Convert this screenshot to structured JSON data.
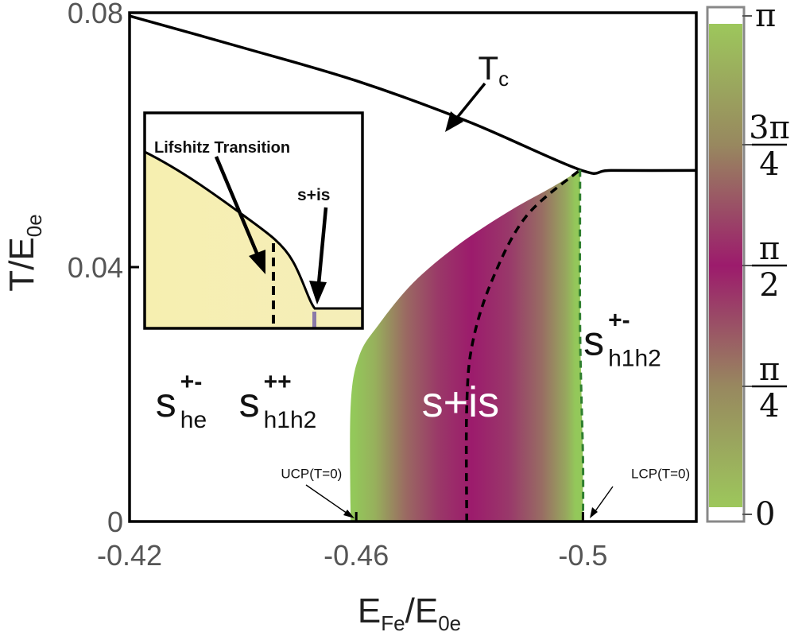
{
  "chart_data": {
    "type": "area",
    "title": "",
    "xlabel": {
      "base": "E",
      "sub": "Fe",
      "sep": "/",
      "base2": "E",
      "sub2": "0e"
    },
    "ylabel": {
      "base": "T/E",
      "sub": "0e"
    },
    "xlim": [
      -0.42,
      -0.52
    ],
    "ylim": [
      0,
      0.08
    ],
    "xticks": [
      {
        "value": -0.42,
        "label": "-0.42"
      },
      {
        "value": -0.46,
        "label": "-0.46"
      },
      {
        "value": -0.5,
        "label": "-0.5"
      }
    ],
    "yticks": [
      {
        "value": 0,
        "label": "0"
      },
      {
        "value": 0.04,
        "label": "0.04"
      },
      {
        "value": 0.08,
        "label": "0.08"
      }
    ],
    "series": [
      {
        "name": "Tc",
        "style": "solid",
        "color": "#000000",
        "x": [
          -0.42,
          -0.44,
          -0.46,
          -0.48,
          -0.4995,
          -0.505,
          -0.52
        ],
        "y": [
          0.0795,
          0.0745,
          0.0693,
          0.0628,
          0.0553,
          0.0552,
          0.0552
        ]
      },
      {
        "name": "s+is boundary (left)",
        "style": "edge",
        "x": [
          -0.459,
          -0.459,
          -0.4605,
          -0.464,
          -0.47,
          -0.478,
          -0.487,
          -0.495,
          -0.4995
        ],
        "y": [
          0.0,
          0.018,
          0.026,
          0.031,
          0.0375,
          0.0435,
          0.0488,
          0.0528,
          0.0553
        ]
      },
      {
        "name": "s+is boundary (right)",
        "style": "dashed",
        "color": "#2f7f2f",
        "x": [
          -0.4995,
          -0.4995,
          -0.5,
          -0.5
        ],
        "y": [
          0.0553,
          0.03,
          0.01,
          0.0
        ]
      },
      {
        "name": "max phase line",
        "style": "dashed",
        "color": "#000000",
        "x": [
          -0.4795,
          -0.4795,
          -0.4805,
          -0.484,
          -0.49,
          -0.4995
        ],
        "y": [
          0.0,
          0.018,
          0.028,
          0.038,
          0.048,
          0.0553
        ]
      }
    ],
    "colorbar": {
      "ticks": [
        {
          "value": 3.1416,
          "label": "π"
        },
        {
          "value": 2.3562,
          "num": "3π",
          "den": "4"
        },
        {
          "value": 1.5708,
          "num": "π",
          "den": "2"
        },
        {
          "value": 0.7854,
          "num": "π",
          "den": "4"
        },
        {
          "value": 0.0,
          "label": "0"
        }
      ],
      "range": [
        0,
        3.1416
      ],
      "colors": {
        "low": "#9dc75c",
        "mid": "#9c1b6c",
        "high": "#9dc75c"
      }
    },
    "annotations": [
      {
        "text": "T",
        "sub": "c",
        "x": -0.4815,
        "y": 0.0695
      },
      {
        "text": "s+is",
        "x": -0.4784,
        "y": 0.0165,
        "color": "#ffffff"
      },
      {
        "text": "s",
        "sup": "+-",
        "sub": "he",
        "x": -0.4246,
        "y": 0.0165
      },
      {
        "text": "s",
        "sup": "++",
        "sub": "h1h2",
        "x": -0.4393,
        "y": 0.0165
      },
      {
        "text": "s",
        "sup": "+-",
        "sub": "h1h2",
        "x": -0.5001,
        "y": 0.0262
      },
      {
        "text": "UCP(T=0)",
        "x": -0.4467,
        "y": 0.0068
      },
      {
        "text": "LCP(T=0)",
        "x": -0.5085,
        "y": 0.0068
      }
    ],
    "inset": {
      "labels": {
        "lifshitz": "Lifshitz Transition",
        "sis": "s+is"
      },
      "fill_color": "#f7efb0"
    }
  }
}
